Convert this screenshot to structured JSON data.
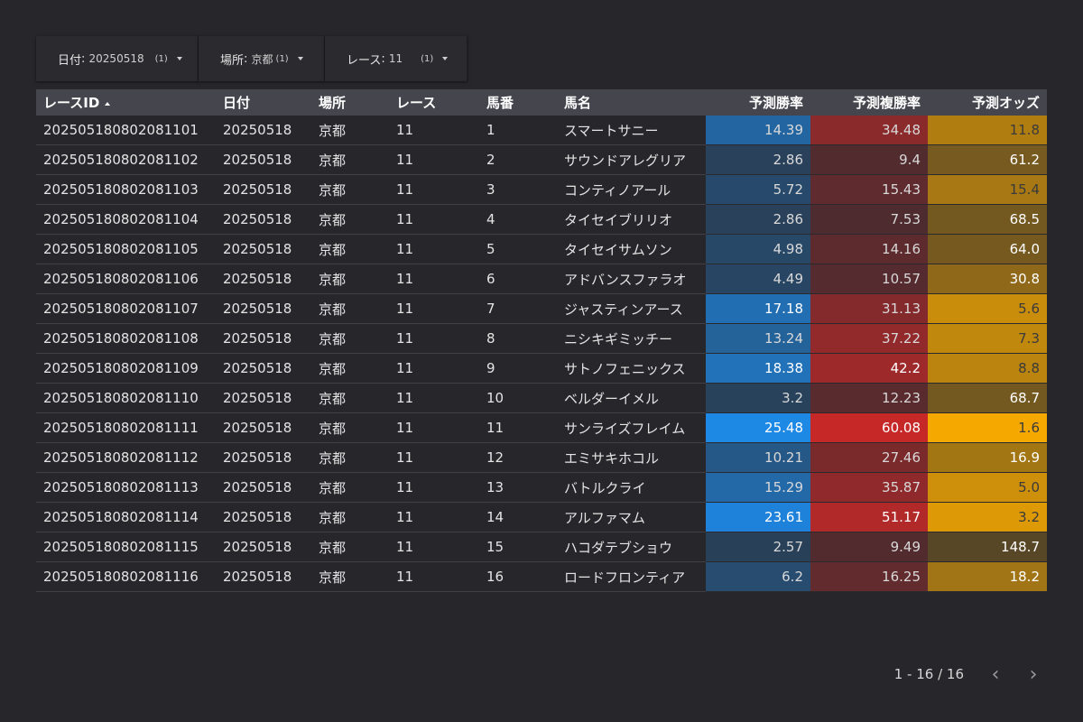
{
  "filters": [
    {
      "label": "日付",
      "value": "20250518",
      "count": "(1)"
    },
    {
      "label": "場所",
      "value": "京都",
      "count": "(1)"
    },
    {
      "label": "レース",
      "value": "11",
      "count": "(1)"
    }
  ],
  "table": {
    "columns": [
      "レースID",
      "日付",
      "場所",
      "レース",
      "馬番",
      "馬名",
      "予測勝率",
      "予測複勝率",
      "予測オッズ"
    ],
    "rows": [
      [
        "202505180802081101",
        "20250518",
        "京都",
        "11",
        "1",
        "スマートサニー",
        "14.39",
        "34.48",
        "11.8"
      ],
      [
        "202505180802081102",
        "20250518",
        "京都",
        "11",
        "2",
        "サウンドアレグリア",
        "2.86",
        "9.4",
        "61.2"
      ],
      [
        "202505180802081103",
        "20250518",
        "京都",
        "11",
        "3",
        "コンティノアール",
        "5.72",
        "15.43",
        "15.4"
      ],
      [
        "202505180802081104",
        "20250518",
        "京都",
        "11",
        "4",
        "タイセイブリリオ",
        "2.86",
        "7.53",
        "68.5"
      ],
      [
        "202505180802081105",
        "20250518",
        "京都",
        "11",
        "5",
        "タイセイサムソン",
        "4.98",
        "14.16",
        "64.0"
      ],
      [
        "202505180802081106",
        "20250518",
        "京都",
        "11",
        "6",
        "アドバンスファラオ",
        "4.49",
        "10.57",
        "30.8"
      ],
      [
        "202505180802081107",
        "20250518",
        "京都",
        "11",
        "7",
        "ジャスティンアース",
        "17.18",
        "31.13",
        "5.6"
      ],
      [
        "202505180802081108",
        "20250518",
        "京都",
        "11",
        "8",
        "ニシキギミッチー",
        "13.24",
        "37.22",
        "7.3"
      ],
      [
        "202505180802081109",
        "20250518",
        "京都",
        "11",
        "9",
        "サトノフェニックス",
        "18.38",
        "42.2",
        "8.8"
      ],
      [
        "202505180802081110",
        "20250518",
        "京都",
        "11",
        "10",
        "ベルダーイメル",
        "3.2",
        "12.23",
        "68.7"
      ],
      [
        "202505180802081111",
        "20250518",
        "京都",
        "11",
        "11",
        "サンライズフレイム",
        "25.48",
        "60.08",
        "1.6"
      ],
      [
        "202505180802081112",
        "20250518",
        "京都",
        "11",
        "12",
        "エミサキホコル",
        "10.21",
        "27.46",
        "16.9"
      ],
      [
        "202505180802081113",
        "20250518",
        "京都",
        "11",
        "13",
        "バトルクライ",
        "15.29",
        "35.87",
        "5.0"
      ],
      [
        "202505180802081114",
        "20250518",
        "京都",
        "11",
        "14",
        "アルファマム",
        "23.61",
        "51.17",
        "3.2"
      ],
      [
        "202505180802081115",
        "20250518",
        "京都",
        "11",
        "15",
        "ハコダテブショウ",
        "2.57",
        "9.49",
        "148.7"
      ],
      [
        "202505180802081116",
        "20250518",
        "京都",
        "11",
        "16",
        "ロードフロンティア",
        "6.2",
        "16.25",
        "18.2"
      ]
    ]
  },
  "heatmap_colors": {
    "win": "#1e88e5",
    "place": "#c62828",
    "odds": "#f5a800",
    "base": "#2c2c31"
  },
  "pagination": {
    "range": "1 - 16 / 16",
    "prev_icon": "chevron-left-icon",
    "next_icon": "chevron-right-icon"
  }
}
